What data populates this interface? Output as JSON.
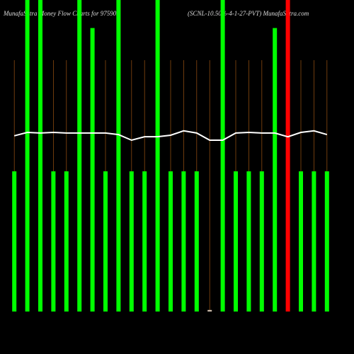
{
  "chart_data": {
    "type": "bar",
    "title": "MunafaSutra  Money Flow  Charts for 975902",
    "subtitle": "(SCNL-10.50%-4-1-27-PVT) MunafaSutra.com",
    "categories": [
      null,
      null,
      null,
      null,
      null,
      null,
      null,
      null,
      null,
      null,
      null,
      null,
      null,
      null,
      null,
      null,
      null,
      null,
      null,
      null,
      null,
      null,
      null,
      null,
      null
    ],
    "ylim": [
      0,
      100
    ],
    "series": [
      {
        "name": "flow",
        "values": [
          45,
          100,
          100,
          45,
          45,
          100,
          91,
          45,
          100,
          45,
          45,
          100,
          45,
          45,
          45,
          0.5,
          100,
          45,
          45,
          45,
          91,
          100,
          45,
          45,
          45
        ],
        "colors": [
          "#00ff00",
          "#00ff00",
          "#00ff00",
          "#00ff00",
          "#00ff00",
          "#00ff00",
          "#00ff00",
          "#00ff00",
          "#00ff00",
          "#00ff00",
          "#00ff00",
          "#00ff00",
          "#00ff00",
          "#00ff00",
          "#00ff00",
          "#ccbbaa",
          "#00ff00",
          "#00ff00",
          "#00ff00",
          "#00ff00",
          "#00ff00",
          "#ff0000",
          "#00ff00",
          "#00ff00",
          "#00ff00"
        ]
      },
      {
        "name": "line",
        "color": "#ffffff",
        "values": [
          56.4,
          57.5,
          57.3,
          57.5,
          57.3,
          57.3,
          57.3,
          57.3,
          56.8,
          55,
          56.1,
          56.1,
          56.6,
          58,
          57.3,
          55,
          55,
          57.3,
          57.5,
          57.3,
          57.3,
          56.1,
          57.5,
          58,
          56.8
        ]
      }
    ]
  }
}
